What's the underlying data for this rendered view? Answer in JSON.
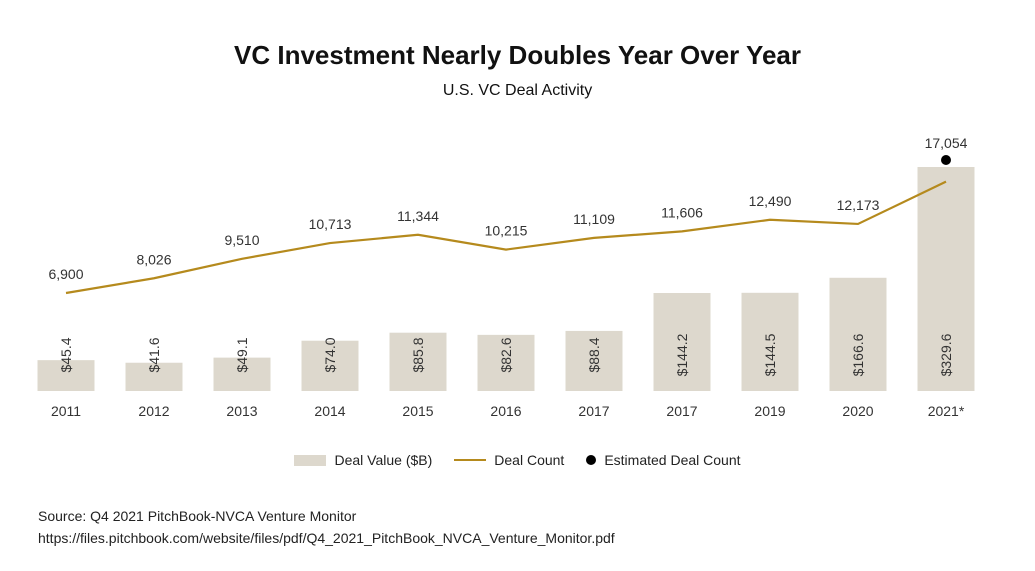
{
  "chart_data": {
    "type": "bar",
    "title": "VC Investment Nearly Doubles Year Over Year",
    "subtitle": "U.S. VC Deal Activity",
    "categories": [
      "2011",
      "2012",
      "2013",
      "2014",
      "2015",
      "2016",
      "2017",
      "2017",
      "2019",
      "2020",
      "2021*"
    ],
    "series": [
      {
        "name": "Deal Value ($B)",
        "type": "bar",
        "values": [
          45.4,
          41.6,
          49.1,
          74.0,
          85.8,
          82.6,
          88.4,
          144.2,
          144.5,
          166.6,
          329.6
        ],
        "labels": [
          "$45.4",
          "$41.6",
          "$49.1",
          "$74.0",
          "$85.8",
          "$82.6",
          "$88.4",
          "$144.2",
          "$144.5",
          "$166.6",
          "$329.6"
        ],
        "color": "#ddd8cd"
      },
      {
        "name": "Deal Count",
        "type": "line",
        "values": [
          6900,
          8026,
          9510,
          10713,
          11344,
          10215,
          11109,
          11606,
          12490,
          12173,
          15400
        ],
        "labels": [
          "6,900",
          "8,026",
          "9,510",
          "10,713",
          "11,344",
          "10,215",
          "11,109",
          "11,606",
          "12,490",
          "12,173",
          ""
        ],
        "color": "#b58a1d"
      },
      {
        "name": "Estimated Deal Count",
        "type": "scatter",
        "values": [
          null,
          null,
          null,
          null,
          null,
          null,
          null,
          null,
          null,
          null,
          17054
        ],
        "labels": [
          "",
          "",
          "",
          "",
          "",
          "",
          "",
          "",
          "",
          "",
          "17,054"
        ],
        "color": "#000000"
      }
    ],
    "legend": [
      "Deal Value ($B)",
      "Deal Count",
      "Estimated Deal Count"
    ],
    "legend_position": "bottom",
    "grid": false
  },
  "source": "Source: Q4 2021 PitchBook-NVCA Venture Monitor",
  "url": "https://files.pitchbook.com/website/files/pdf/Q4_2021_PitchBook_NVCA_Venture_Monitor.pdf"
}
